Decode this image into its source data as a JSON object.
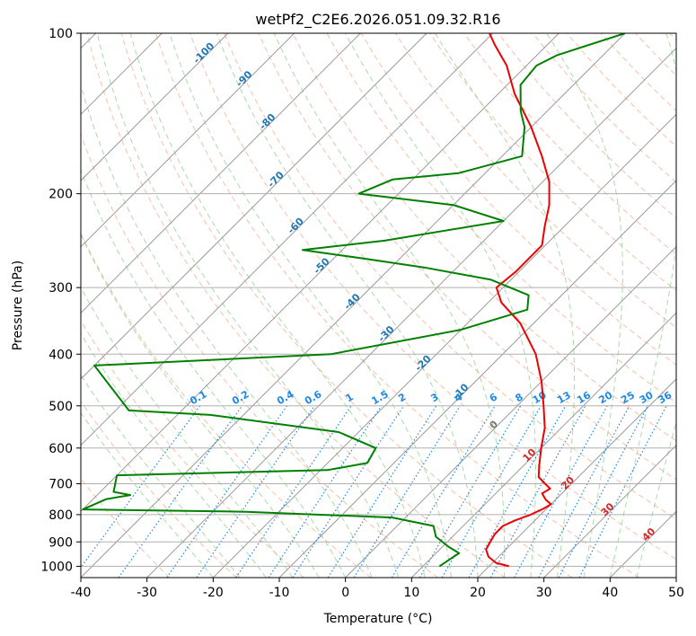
{
  "chart_data": {
    "type": "line",
    "subtype": "skew-t log-p diagram",
    "title": "wetPf2_C2E6.2026.051.09.32.R16",
    "xlabel": "Temperature (°C)",
    "ylabel": "Pressure (hPa)",
    "xlim": [
      -40,
      50
    ],
    "ylim": [
      1050,
      100
    ],
    "y_scale": "log",
    "x_ticks": [
      -40,
      -30,
      -20,
      -10,
      0,
      10,
      20,
      30,
      40,
      50
    ],
    "y_ticks": [
      1000,
      900,
      800,
      700,
      600,
      500,
      400,
      300,
      200,
      100
    ],
    "grid": true,
    "colors": {
      "temperature": "#ee0000",
      "dewpoint": "#008000",
      "isotherm": "#9a9a9a",
      "dry_adiabat": "#f4a582",
      "moist_adiabat": "#8ccf8c",
      "mixing_ratio": "#1e88e5",
      "dry_adiabat_label": "#d62728",
      "isotherm_label": "#1f77b4"
    },
    "series": [
      {
        "key": "temperature",
        "points": [
          {
            "p": 1000,
            "t": 23.0
          },
          {
            "p": 985,
            "t": 20.5
          },
          {
            "p": 960,
            "t": 18.5
          },
          {
            "p": 930,
            "t": 17.0
          },
          {
            "p": 900,
            "t": 16.5
          },
          {
            "p": 870,
            "t": 16.0
          },
          {
            "p": 840,
            "t": 16.0
          },
          {
            "p": 820,
            "t": 17.0
          },
          {
            "p": 800,
            "t": 18.5
          },
          {
            "p": 780,
            "t": 19.5
          },
          {
            "p": 765,
            "t": 20.0
          },
          {
            "p": 750,
            "t": 18.5
          },
          {
            "p": 730,
            "t": 17.0
          },
          {
            "p": 715,
            "t": 17.5
          },
          {
            "p": 700,
            "t": 16.0
          },
          {
            "p": 680,
            "t": 14.0
          },
          {
            "p": 650,
            "t": 12.5
          },
          {
            "p": 600,
            "t": 10.0
          },
          {
            "p": 550,
            "t": 7.5
          },
          {
            "p": 500,
            "t": 4.0
          },
          {
            "p": 450,
            "t": 0.0
          },
          {
            "p": 400,
            "t": -5.0
          },
          {
            "p": 350,
            "t": -12.0
          },
          {
            "p": 320,
            "t": -18.0
          },
          {
            "p": 300,
            "t": -21.0
          },
          {
            "p": 280,
            "t": -20.5
          },
          {
            "p": 250,
            "t": -20.5
          },
          {
            "p": 230,
            "t": -23.0
          },
          {
            "p": 210,
            "t": -25.5
          },
          {
            "p": 190,
            "t": -29.0
          },
          {
            "p": 170,
            "t": -34.0
          },
          {
            "p": 150,
            "t": -40.0
          },
          {
            "p": 130,
            "t": -47.5
          },
          {
            "p": 115,
            "t": -53.0
          },
          {
            "p": 105,
            "t": -58.0
          },
          {
            "p": 100,
            "t": -60.5
          }
        ]
      },
      {
        "key": "dewpoint",
        "points": [
          {
            "p": 1000,
            "t": 12.5
          },
          {
            "p": 970,
            "t": 13.0
          },
          {
            "p": 945,
            "t": 13.5
          },
          {
            "p": 920,
            "t": 11.0
          },
          {
            "p": 880,
            "t": 7.5
          },
          {
            "p": 840,
            "t": 5.5
          },
          {
            "p": 810,
            "t": -2.0
          },
          {
            "p": 790,
            "t": -25.0
          },
          {
            "p": 782,
            "t": -50.0
          },
          {
            "p": 748,
            "t": -48.0
          },
          {
            "p": 735,
            "t": -45.0
          },
          {
            "p": 725,
            "t": -48.0
          },
          {
            "p": 675,
            "t": -50.0
          },
          {
            "p": 660,
            "t": -19.0
          },
          {
            "p": 640,
            "t": -14.0
          },
          {
            "p": 600,
            "t": -15.0
          },
          {
            "p": 560,
            "t": -23.0
          },
          {
            "p": 520,
            "t": -45.0
          },
          {
            "p": 510,
            "t": -58.0
          },
          {
            "p": 420,
            "t": -70.0
          },
          {
            "p": 400,
            "t": -36.0
          },
          {
            "p": 360,
            "t": -20.0
          },
          {
            "p": 330,
            "t": -13.0
          },
          {
            "p": 310,
            "t": -15.0
          },
          {
            "p": 290,
            "t": -23.0
          },
          {
            "p": 275,
            "t": -35.0
          },
          {
            "p": 265,
            "t": -45.0
          },
          {
            "p": 255,
            "t": -56.0
          },
          {
            "p": 245,
            "t": -45.0
          },
          {
            "p": 225,
            "t": -30.0
          },
          {
            "p": 210,
            "t": -40.0
          },
          {
            "p": 200,
            "t": -56.0
          },
          {
            "p": 188,
            "t": -53.0
          },
          {
            "p": 183,
            "t": -44.0
          },
          {
            "p": 170,
            "t": -37.0
          },
          {
            "p": 150,
            "t": -41.0
          },
          {
            "p": 140,
            "t": -44.0
          },
          {
            "p": 125,
            "t": -48.0
          },
          {
            "p": 115,
            "t": -48.5
          },
          {
            "p": 110,
            "t": -47.0
          },
          {
            "p": 100,
            "t": -40.0
          }
        ]
      }
    ],
    "isotherm_labels": [
      {
        "p": 110,
        "t": -100,
        "text": "-100"
      },
      {
        "p": 123,
        "t": -90,
        "text": "-90"
      },
      {
        "p": 148,
        "t": -80,
        "text": "-80"
      },
      {
        "p": 190,
        "t": -70,
        "text": "-70"
      },
      {
        "p": 232,
        "t": -60,
        "text": "-60"
      },
      {
        "p": 276,
        "t": -50,
        "text": "-50"
      },
      {
        "p": 322,
        "t": -40,
        "text": "-40"
      },
      {
        "p": 370,
        "t": -30,
        "text": "-30"
      },
      {
        "p": 420,
        "t": -20,
        "text": "-20"
      },
      {
        "p": 475,
        "t": -10,
        "text": "-10"
      },
      {
        "p": 548,
        "t": 0,
        "text": "0"
      },
      {
        "p": 625,
        "t": 10,
        "text": "10"
      },
      {
        "p": 705,
        "t": 20,
        "text": "20"
      },
      {
        "p": 790,
        "t": 30,
        "text": "30"
      },
      {
        "p": 880,
        "t": 40,
        "text": "40"
      }
    ],
    "mixing_ratio_labels": [
      {
        "w": 0.1,
        "text": "0.1"
      },
      {
        "w": 0.2,
        "text": "0.2"
      },
      {
        "w": 0.4,
        "text": "0.4"
      },
      {
        "w": 0.6,
        "text": "0.6"
      },
      {
        "w": 1,
        "text": "1"
      },
      {
        "w": 1.5,
        "text": "1.5"
      },
      {
        "w": 2,
        "text": "2"
      },
      {
        "w": 3,
        "text": "3"
      },
      {
        "w": 4,
        "text": "4"
      },
      {
        "w": 6,
        "text": "6"
      },
      {
        "w": 8,
        "text": "8"
      },
      {
        "w": 10,
        "text": "10"
      },
      {
        "w": 13,
        "text": "13"
      },
      {
        "w": 16,
        "text": "16"
      },
      {
        "w": 20,
        "text": "20"
      },
      {
        "w": 25,
        "text": "25"
      },
      {
        "w": 30,
        "text": "30"
      },
      {
        "w": 36,
        "text": "36"
      }
    ]
  }
}
